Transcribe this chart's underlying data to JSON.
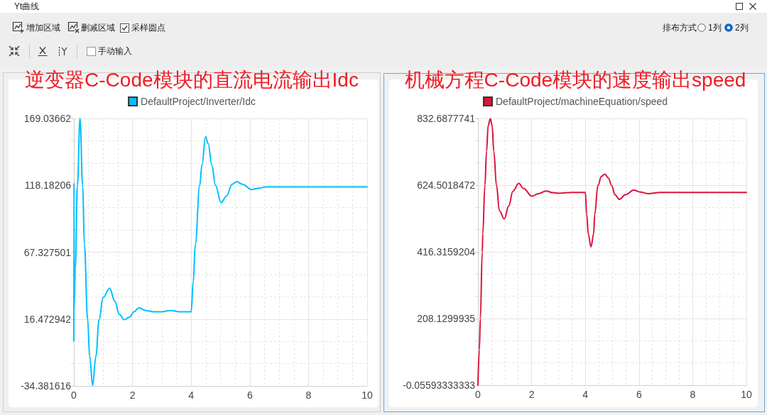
{
  "chart_data": [
    {
      "type": "other",
      "title": "Yt曲线",
      "annotations": [
        "增加区域",
        "删减区域",
        "采样圆点",
        "排布方式",
        "1列",
        "2列",
        "手动输入"
      ]
    },
    {
      "type": "line",
      "title": "逆变器C-Code模块的直流电流输出Idc",
      "x": [
        0,
        0.005,
        0.01,
        0.05,
        0.12,
        0.21,
        0.3,
        0.36,
        0.47,
        0.54,
        0.64,
        0.75,
        0.86,
        1.0,
        1.22,
        1.4,
        1.55,
        1.72,
        1.9,
        2.05,
        2.22,
        2.45,
        2.73,
        3.0,
        3.28,
        3.6,
        4.0,
        4.07,
        4.14,
        4.29,
        4.37,
        4.49,
        4.58,
        4.7,
        4.83,
        5.02,
        5.2,
        5.4,
        5.55,
        5.75,
        6.06,
        6.3,
        6.54,
        7.0,
        8.0,
        9.0,
        10.0
      ],
      "series": [
        {
          "name": "DefaultProject/Inverter/Idc",
          "color": "#00bfff",
          "values": [
            0,
            120,
            25,
            55,
            118,
            169,
            118,
            73,
            16,
            -12,
            -34,
            -12,
            16,
            33,
            40,
            30,
            20,
            16,
            18,
            22,
            25,
            23,
            22,
            22,
            23,
            22,
            22,
            45,
            73,
            118,
            134,
            155,
            150,
            134,
            118,
            105,
            110,
            119,
            121,
            119,
            115,
            116,
            117,
            117,
            117,
            117,
            117
          ]
        }
      ],
      "xlim": [
        0,
        10
      ],
      "xticks": [
        0,
        2,
        4,
        6,
        8,
        10
      ],
      "ylim": [
        -34.381616,
        169.03662
      ],
      "yticks": [
        -34.381616,
        16.472942,
        67.327501,
        118.18206,
        169.03662
      ],
      "grid": true,
      "legend": "top",
      "marker": "none",
      "line_style": "solid"
    },
    {
      "type": "line",
      "title": "机械方程C-Code模块的速度输出speed",
      "x": [
        0,
        0.05,
        0.09,
        0.16,
        0.18,
        0.26,
        0.32,
        0.38,
        0.46,
        0.53,
        0.59,
        0.69,
        0.8,
        0.98,
        1.15,
        1.3,
        1.52,
        1.7,
        2.01,
        2.25,
        2.54,
        2.8,
        3.0,
        3.5,
        4.0,
        4.05,
        4.11,
        4.21,
        4.31,
        4.35,
        4.47,
        4.6,
        4.73,
        4.85,
        4.98,
        5.1,
        5.27,
        5.5,
        5.8,
        6.05,
        6.35,
        6.8,
        8.0,
        10.0
      ],
      "series": [
        {
          "name": "DefaultProject/machineEquation/speed",
          "color": "#dc143c",
          "values": [
            0,
            110,
            208,
            416,
            472,
            624,
            730,
            810,
            832,
            810,
            730,
            624,
            545,
            519,
            560,
            605,
            630,
            614,
            590,
            598,
            606,
            601,
            599,
            602,
            602,
            534,
            472,
            432,
            472,
            534,
            624,
            652,
            659,
            648,
            624,
            595,
            580,
            595,
            609,
            603,
            598,
            602,
            602,
            602
          ]
        }
      ],
      "xlim": [
        0,
        10
      ],
      "xticks": [
        0,
        2,
        4,
        6,
        8,
        10
      ],
      "ylim": [
        -0.05593333333,
        832.6877741
      ],
      "yticks": [
        -0.05593333333,
        208.1299935,
        416.3159204,
        624.5018472,
        832.6877741
      ],
      "grid": true,
      "legend": "top",
      "marker": "none",
      "line_style": "solid"
    }
  ]
}
